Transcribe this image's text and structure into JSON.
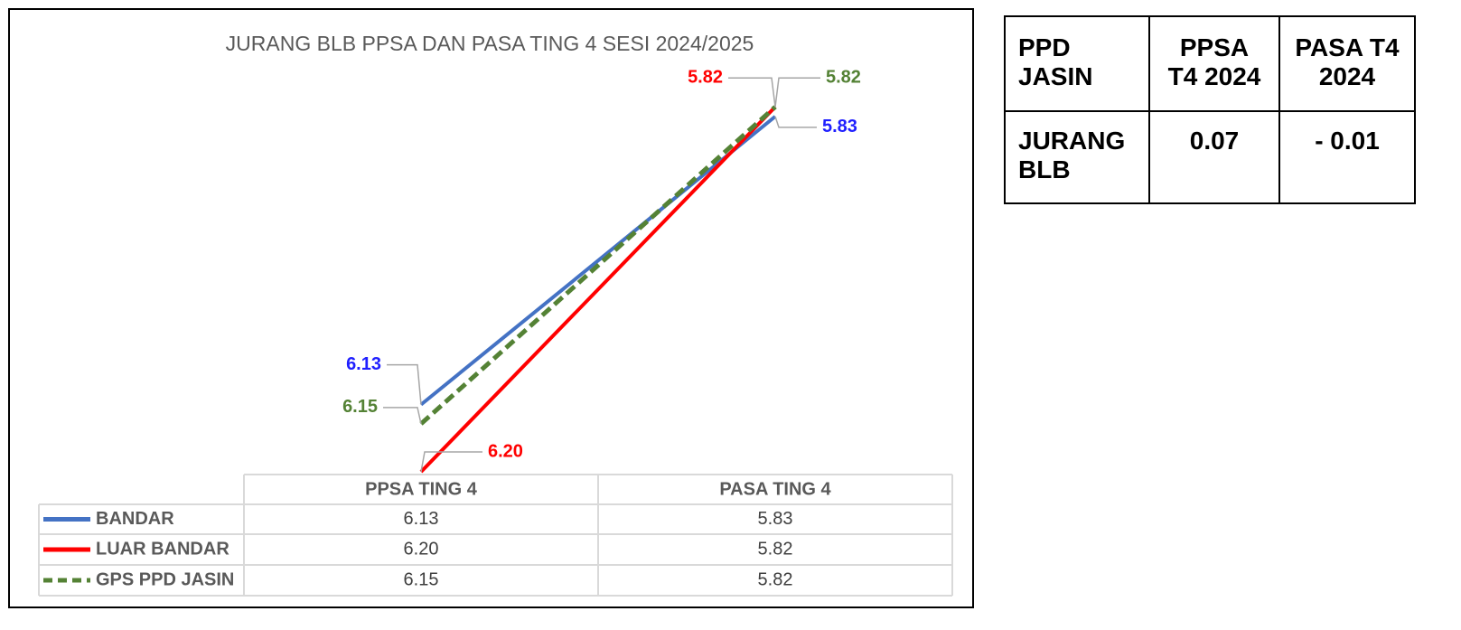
{
  "chart_data": {
    "type": "line",
    "title": "JURANG BLB PPSA DAN PASA TING 4 SESI 2024/2025",
    "categories": [
      "PPSA TING 4",
      "PASA TING 4"
    ],
    "series": [
      {
        "name": "BANDAR",
        "color": "#4472c4",
        "dashed": false,
        "values": [
          6.13,
          5.83
        ],
        "value_labels": [
          "6.13",
          "5.83"
        ]
      },
      {
        "name": "LUAR BANDAR",
        "color": "#ff0000",
        "dashed": false,
        "values": [
          6.2,
          5.82
        ],
        "value_labels": [
          "6.20",
          "5.82"
        ]
      },
      {
        "name": "GPS PPD JASIN",
        "color": "#548235",
        "dashed": true,
        "values": [
          6.15,
          5.82
        ],
        "value_labels": [
          "6.15",
          "5.82"
        ]
      }
    ],
    "ylim": [
      5.8,
      6.2
    ],
    "y_inverted": true,
    "grid": false,
    "data_table": true
  },
  "side_table": {
    "header": [
      "PPD JASIN",
      "PPSA T4 2024",
      "PASA T4 2024"
    ],
    "rows": [
      [
        "JURANG BLB",
        "0.07",
        "- 0.01"
      ]
    ]
  }
}
